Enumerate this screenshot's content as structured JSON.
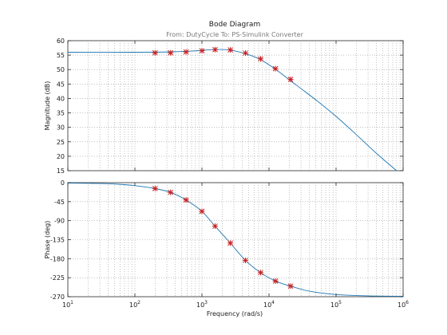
{
  "chart_data": {
    "type": "line",
    "title": "Bode Diagram",
    "subtitle": "From: DutyCycle  To: PS-Simulink Converter",
    "xlabel": "Frequency  (rad/s)",
    "xscale": "log",
    "xlim": [
      10,
      1000000
    ],
    "x_ticks": [
      "10^1",
      "10^2",
      "10^3",
      "10^4",
      "10^5",
      "10^6"
    ],
    "grid": true,
    "curve_color": "#1f78b4",
    "marker_color": "#c81e1e",
    "magnitude": {
      "ylabel": "Magnitude (dB)",
      "ylim": [
        15,
        60
      ],
      "y_ticks": [
        15,
        20,
        25,
        30,
        35,
        40,
        45,
        50,
        55,
        60
      ],
      "curve": {
        "x": [
          10,
          100,
          300,
          700,
          1500,
          2500,
          4000,
          7000,
          12000,
          20000,
          50000,
          100000,
          200000,
          400000,
          800000
        ],
        "y": [
          56,
          56,
          56.1,
          56.4,
          56.9,
          56.8,
          55.8,
          53.8,
          50.4,
          46.5,
          39.5,
          33.8,
          27.5,
          21,
          15
        ]
      },
      "markers": {
        "x": [
          200,
          340,
          580,
          1000,
          1570,
          2650,
          4450,
          7500,
          12500,
          21000
        ],
        "y": [
          55.8,
          55.8,
          56.1,
          56.5,
          56.9,
          56.8,
          55.7,
          53.7,
          50.3,
          46.6
        ]
      }
    },
    "phase": {
      "ylabel": "Phase (deg)",
      "ylim": [
        -270,
        0
      ],
      "y_ticks": [
        0,
        -45,
        -90,
        -135,
        -180,
        -225,
        -270
      ],
      "curve": {
        "x": [
          10,
          30,
          60,
          100,
          200,
          340,
          580,
          1000,
          1570,
          2650,
          4450,
          7500,
          12500,
          21000,
          40000,
          100000,
          300000,
          1000000
        ],
        "y": [
          -1,
          -2,
          -4,
          -7,
          -14,
          -23,
          -41,
          -68,
          -103,
          -143,
          -184,
          -213,
          -233,
          -245,
          -257,
          -265,
          -268,
          -269
        ]
      },
      "markers": {
        "x": [
          200,
          340,
          580,
          1000,
          1570,
          2650,
          4450,
          7500,
          12500,
          21000
        ],
        "y": [
          -14,
          -23,
          -41,
          -68,
          -103,
          -143,
          -184,
          -213,
          -233,
          -245
        ]
      }
    }
  }
}
